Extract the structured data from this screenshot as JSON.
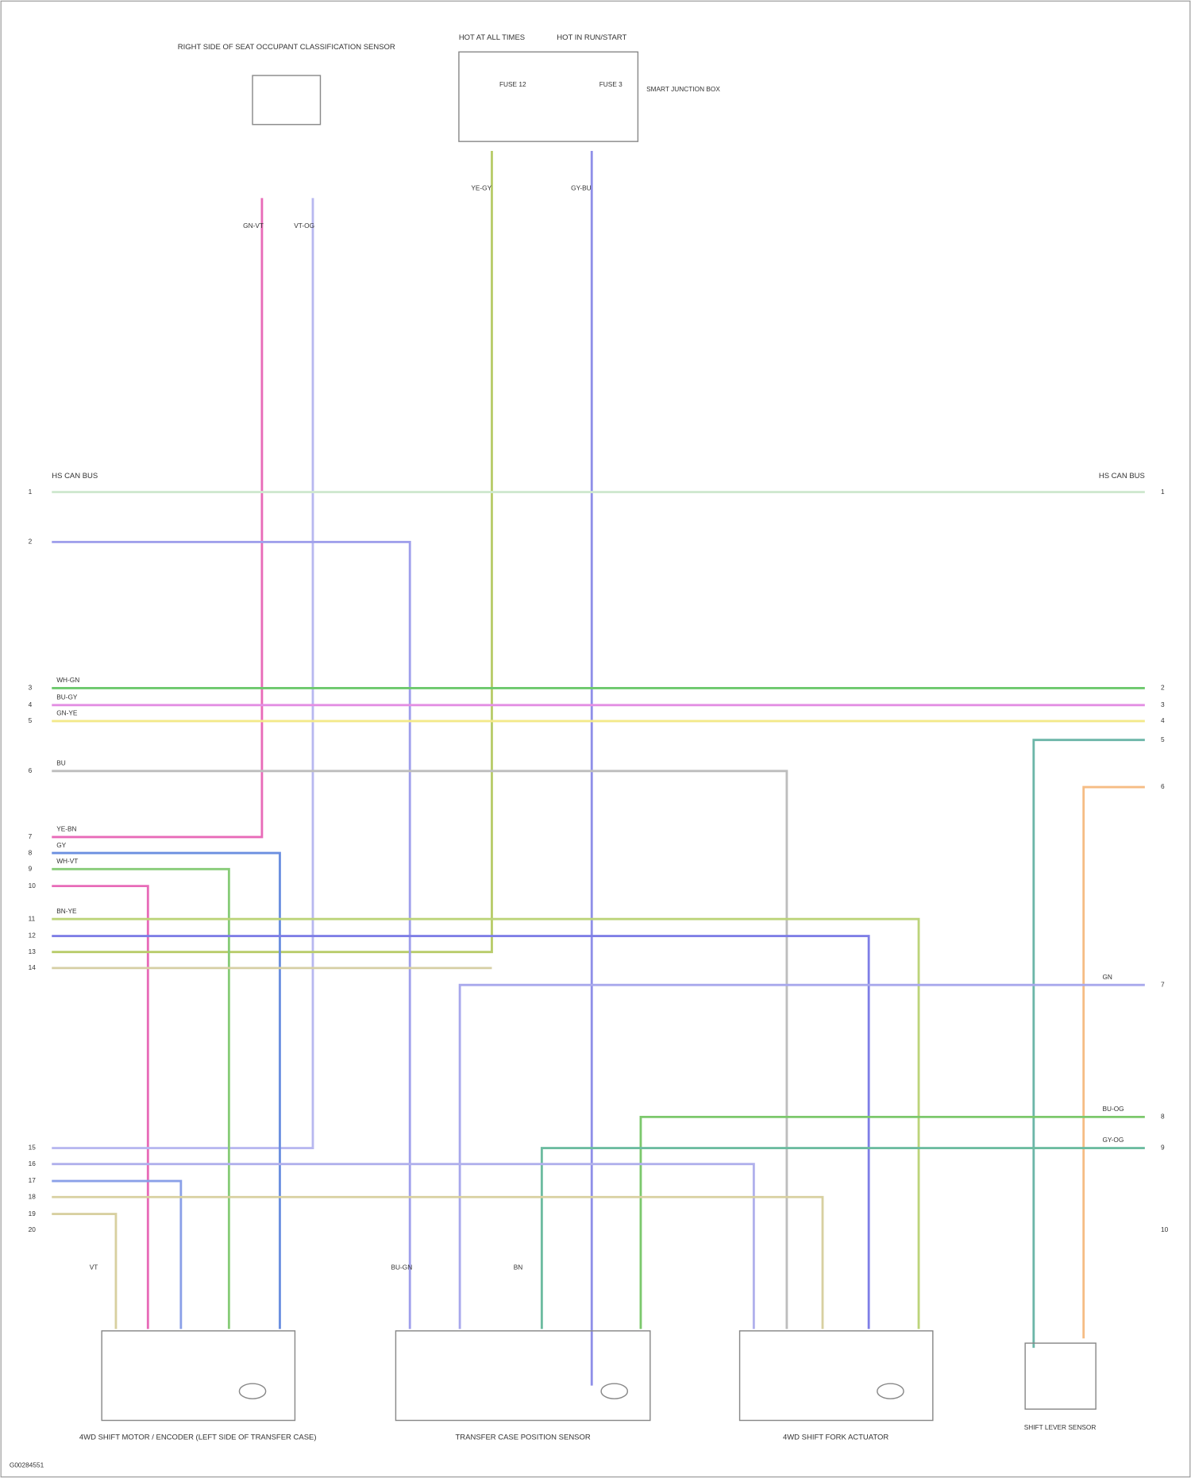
{
  "components": [
    {
      "label": "RIGHT SIDE OF SEAT OCCUPANT CLASSIFICATION SENSOR"
    },
    {
      "label": "HOT AT ALL TIMES"
    },
    {
      "label": "HOT IN RUN/START"
    },
    {
      "label": "SMART JUNCTION BOX"
    },
    {
      "label": "4WD SHIFT MOTOR / ENCODER (LEFT SIDE OF TRANSFER CASE)"
    },
    {
      "label": "TRANSFER CASE POSITION SENSOR"
    },
    {
      "label": "4WD SHIFT FORK ACTUATOR"
    },
    {
      "label": "SHIFT LEVER SENSOR"
    }
  ],
  "fuses": [
    {
      "label": "FUSE 12"
    },
    {
      "label": "FUSE 3"
    }
  ],
  "networks": [
    {
      "label": "HS CAN BUS"
    },
    {
      "label": "HS CAN BUS"
    }
  ],
  "left_pins": [
    "1",
    "2",
    "3",
    "4",
    "5",
    "6",
    "7",
    "8",
    "9",
    "10",
    "11",
    "12",
    "13",
    "14",
    "15",
    "16",
    "17",
    "18",
    "19",
    "20"
  ],
  "right_pins": [
    "1",
    "2",
    "3",
    "4",
    "5",
    "6",
    "7",
    "8",
    "9",
    "10"
  ],
  "wire_labels": [
    "GN-VT",
    "VT-OG",
    "YE-GY",
    "GY-BU",
    "WH-GN",
    "BU-GY",
    "GN-YE",
    "BU",
    "YE-BN",
    "GY",
    "WH-VT",
    "BN-YE",
    "GN",
    "BU-OG",
    "GY-OG",
    "VT",
    "BU-GN",
    "BN"
  ],
  "footer": "G00284551"
}
